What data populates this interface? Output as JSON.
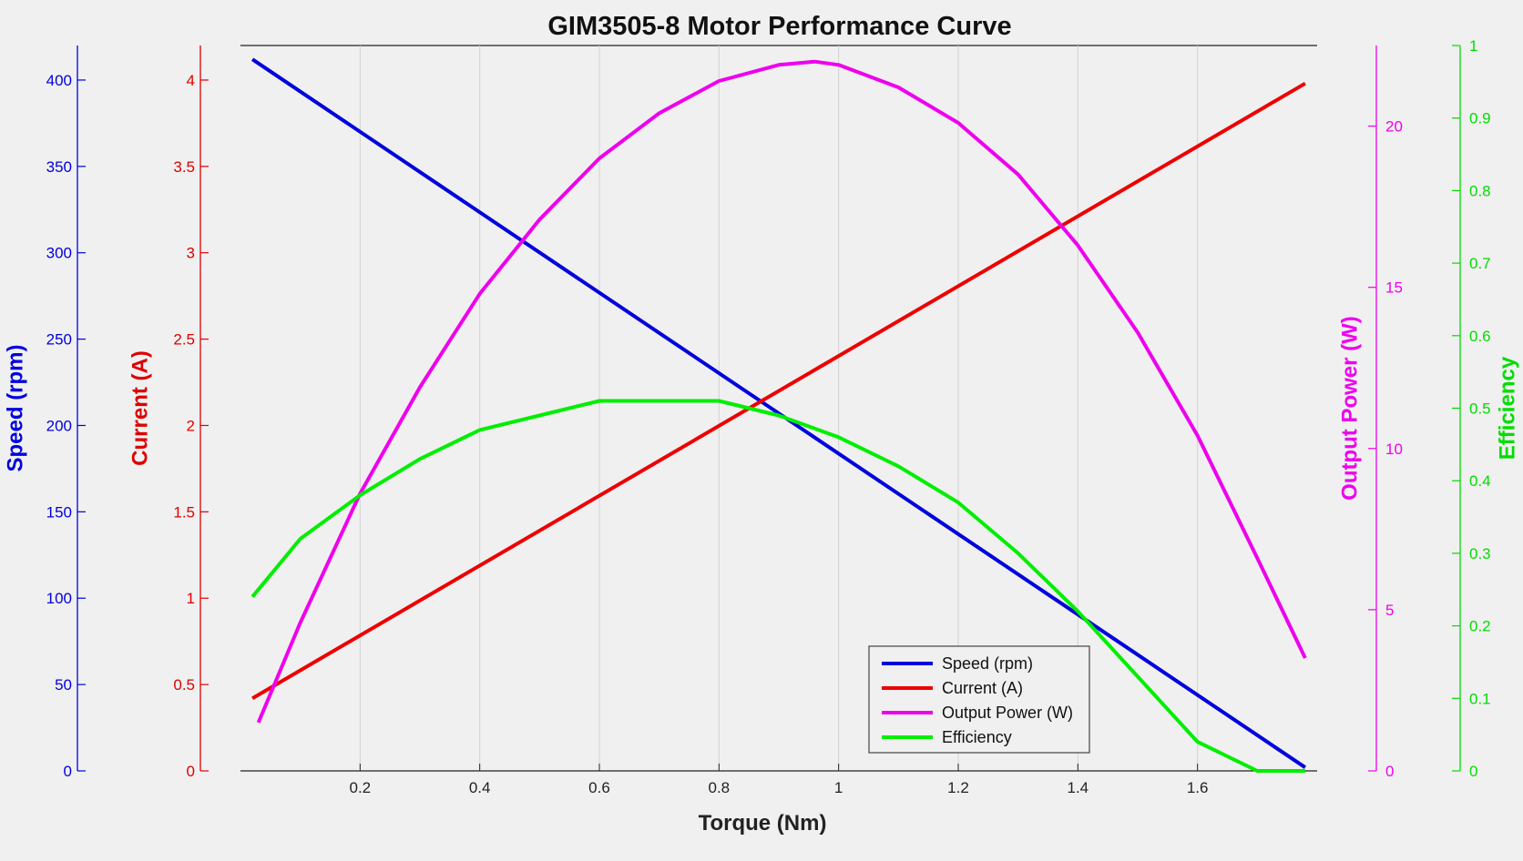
{
  "chart_data": {
    "type": "line",
    "title": "GIM3505-8 Motor Performance Curve",
    "xlabel": "Torque (Nm)",
    "xlim": [
      0.0,
      1.8
    ],
    "xticks": [
      0.2,
      0.4,
      0.6,
      0.8,
      1,
      1.2,
      1.4,
      1.6
    ],
    "grid": "vertical",
    "legend_position": "bottom-right",
    "axes": [
      {
        "id": "speed",
        "label": "Speed (rpm)",
        "color": "#0000dd",
        "lim": [
          0,
          420
        ],
        "ticks": [
          0,
          50,
          100,
          150,
          200,
          250,
          300,
          350,
          400
        ],
        "side": "left-outer"
      },
      {
        "id": "current",
        "label": "Current (A)",
        "color": "#dd0000",
        "lim": [
          0,
          4.2
        ],
        "ticks": [
          0,
          0.5,
          1,
          1.5,
          2,
          2.5,
          3,
          3.5,
          4
        ],
        "side": "left-inner"
      },
      {
        "id": "power",
        "label": "Output Power (W)",
        "color": "#ee00ee",
        "lim": [
          0,
          22.5
        ],
        "ticks": [
          0,
          5,
          10,
          15,
          20
        ],
        "side": "right-inner"
      },
      {
        "id": "efficiency",
        "label": "Efficiency",
        "color": "#00dd00",
        "lim": [
          0,
          1
        ],
        "ticks": [
          0,
          0.1,
          0.2,
          0.3,
          0.4,
          0.5,
          0.6,
          0.7,
          0.8,
          0.9,
          1
        ],
        "side": "right-outer"
      }
    ],
    "series": [
      {
        "name": "Speed (rpm)",
        "axis": "speed",
        "color": "#0000dd",
        "x": [
          0.02,
          1.78
        ],
        "y": [
          412,
          2
        ]
      },
      {
        "name": "Current (A)",
        "axis": "current",
        "color": "#ee0000",
        "x": [
          0.02,
          1.78
        ],
        "y": [
          0.42,
          3.98
        ]
      },
      {
        "name": "Output Power (W)",
        "axis": "power",
        "color": "#ee00ee",
        "x": [
          0.03,
          0.1,
          0.2,
          0.3,
          0.4,
          0.5,
          0.6,
          0.7,
          0.8,
          0.9,
          0.96,
          1.0,
          1.1,
          1.2,
          1.3,
          1.4,
          1.5,
          1.6,
          1.7,
          1.78
        ],
        "y": [
          1.5,
          4.6,
          8.6,
          11.9,
          14.8,
          17.1,
          19.0,
          20.4,
          21.4,
          21.9,
          22.0,
          21.9,
          21.2,
          20.1,
          18.5,
          16.3,
          13.6,
          10.4,
          6.6,
          3.5
        ]
      },
      {
        "name": "Efficiency",
        "axis": "efficiency",
        "color": "#00ee00",
        "x": [
          0.02,
          0.1,
          0.2,
          0.3,
          0.4,
          0.5,
          0.6,
          0.7,
          0.8,
          0.9,
          1.0,
          1.1,
          1.2,
          1.3,
          1.4,
          1.5,
          1.6,
          1.7,
          1.78
        ],
        "y": [
          0.24,
          0.32,
          0.38,
          0.43,
          0.47,
          0.49,
          0.51,
          0.51,
          0.51,
          0.49,
          0.46,
          0.42,
          0.37,
          0.3,
          0.22,
          0.13,
          0.04,
          0.0,
          0.0
        ]
      }
    ]
  }
}
